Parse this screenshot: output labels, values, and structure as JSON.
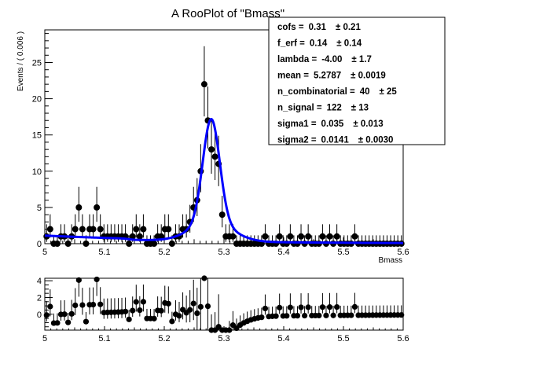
{
  "chart_data": [
    {
      "type": "scatter",
      "title": "A RooPlot of \"Bmass\"",
      "xlabel": "Bmass",
      "ylabel": "Events / ( 0.006 )",
      "xlim": [
        5.0,
        5.6
      ],
      "ylim": [
        0,
        29.5
      ],
      "xticks": [
        "5",
        "5.1",
        "5.2",
        "5.3",
        "5.4",
        "5.5",
        "5.6"
      ],
      "yticks": [
        "0",
        "5",
        "10",
        "15",
        "20",
        "25"
      ],
      "points": [
        {
          "x": 5.003,
          "y": 1
        },
        {
          "x": 5.009,
          "y": 2
        },
        {
          "x": 5.015,
          "y": 0
        },
        {
          "x": 5.021,
          "y": 0
        },
        {
          "x": 5.027,
          "y": 1
        },
        {
          "x": 5.033,
          "y": 1
        },
        {
          "x": 5.039,
          "y": 0
        },
        {
          "x": 5.045,
          "y": 1
        },
        {
          "x": 5.051,
          "y": 2
        },
        {
          "x": 5.057,
          "y": 5
        },
        {
          "x": 5.063,
          "y": 2
        },
        {
          "x": 5.069,
          "y": 0
        },
        {
          "x": 5.075,
          "y": 2
        },
        {
          "x": 5.081,
          "y": 2
        },
        {
          "x": 5.087,
          "y": 5
        },
        {
          "x": 5.093,
          "y": 2
        },
        {
          "x": 5.099,
          "y": 1
        },
        {
          "x": 5.105,
          "y": 1
        },
        {
          "x": 5.111,
          "y": 1
        },
        {
          "x": 5.117,
          "y": 1
        },
        {
          "x": 5.123,
          "y": 1
        },
        {
          "x": 5.129,
          "y": 1
        },
        {
          "x": 5.135,
          "y": 1
        },
        {
          "x": 5.141,
          "y": 0
        },
        {
          "x": 5.147,
          "y": 1
        },
        {
          "x": 5.153,
          "y": 2
        },
        {
          "x": 5.159,
          "y": 1
        },
        {
          "x": 5.165,
          "y": 2
        },
        {
          "x": 5.171,
          "y": 0
        },
        {
          "x": 5.177,
          "y": 0
        },
        {
          "x": 5.183,
          "y": 0
        },
        {
          "x": 5.189,
          "y": 1
        },
        {
          "x": 5.195,
          "y": 1
        },
        {
          "x": 5.201,
          "y": 2
        },
        {
          "x": 5.207,
          "y": 2
        },
        {
          "x": 5.213,
          "y": 0
        },
        {
          "x": 5.219,
          "y": 1
        },
        {
          "x": 5.225,
          "y": 1
        },
        {
          "x": 5.231,
          "y": 2
        },
        {
          "x": 5.237,
          "y": 2
        },
        {
          "x": 5.243,
          "y": 3
        },
        {
          "x": 5.249,
          "y": 5
        },
        {
          "x": 5.255,
          "y": 6
        },
        {
          "x": 5.261,
          "y": 10
        },
        {
          "x": 5.267,
          "y": 22
        },
        {
          "x": 5.273,
          "y": 17
        },
        {
          "x": 5.279,
          "y": 13
        },
        {
          "x": 5.285,
          "y": 12
        },
        {
          "x": 5.291,
          "y": 11
        },
        {
          "x": 5.297,
          "y": 4
        },
        {
          "x": 5.303,
          "y": 1
        },
        {
          "x": 5.309,
          "y": 1
        },
        {
          "x": 5.315,
          "y": 1
        },
        {
          "x": 5.321,
          "y": 0
        },
        {
          "x": 5.327,
          "y": 0
        },
        {
          "x": 5.333,
          "y": 0
        },
        {
          "x": 5.339,
          "y": 0
        },
        {
          "x": 5.345,
          "y": 0
        },
        {
          "x": 5.351,
          "y": 0
        },
        {
          "x": 5.357,
          "y": 0
        },
        {
          "x": 5.363,
          "y": 0
        },
        {
          "x": 5.369,
          "y": 1
        },
        {
          "x": 5.375,
          "y": 0
        },
        {
          "x": 5.381,
          "y": 0
        },
        {
          "x": 5.387,
          "y": 0
        },
        {
          "x": 5.393,
          "y": 1
        },
        {
          "x": 5.399,
          "y": 0
        },
        {
          "x": 5.405,
          "y": 0
        },
        {
          "x": 5.411,
          "y": 1
        },
        {
          "x": 5.417,
          "y": 0
        },
        {
          "x": 5.423,
          "y": 0
        },
        {
          "x": 5.429,
          "y": 1
        },
        {
          "x": 5.435,
          "y": 0
        },
        {
          "x": 5.441,
          "y": 1
        },
        {
          "x": 5.447,
          "y": 0
        },
        {
          "x": 5.453,
          "y": 0
        },
        {
          "x": 5.459,
          "y": 0
        },
        {
          "x": 5.465,
          "y": 1
        },
        {
          "x": 5.471,
          "y": 0
        },
        {
          "x": 5.477,
          "y": 1
        },
        {
          "x": 5.483,
          "y": 0
        },
        {
          "x": 5.489,
          "y": 1
        },
        {
          "x": 5.495,
          "y": 0
        },
        {
          "x": 5.501,
          "y": 0
        },
        {
          "x": 5.507,
          "y": 0
        },
        {
          "x": 5.513,
          "y": 0
        },
        {
          "x": 5.519,
          "y": 1
        },
        {
          "x": 5.525,
          "y": 0
        },
        {
          "x": 5.531,
          "y": 0
        },
        {
          "x": 5.537,
          "y": 0
        },
        {
          "x": 5.543,
          "y": 0
        },
        {
          "x": 5.549,
          "y": 0
        },
        {
          "x": 5.555,
          "y": 0
        },
        {
          "x": 5.561,
          "y": 0
        },
        {
          "x": 5.567,
          "y": 0
        },
        {
          "x": 5.573,
          "y": 0
        },
        {
          "x": 5.579,
          "y": 0
        },
        {
          "x": 5.585,
          "y": 0
        },
        {
          "x": 5.591,
          "y": 0
        },
        {
          "x": 5.597,
          "y": 0
        }
      ],
      "fit_curve": {
        "color": "#0000ff",
        "components": {
          "n_signal": 122,
          "n_combinatorial": 40,
          "bin_width": 0.006,
          "mean": 5.2787,
          "sigma1": 0.035,
          "sigma2": 0.0141,
          "cofs": 0.31,
          "lambda": -4.0,
          "f_erf": 0.14
        }
      },
      "params": [
        {
          "name": "cofs =",
          "value": "0.31",
          "error": "± 0.21"
        },
        {
          "name": "f_erf =",
          "value": "0.14",
          "error": "± 0.14"
        },
        {
          "name": "lambda =",
          "value": "-4.00",
          "error": "± 1.7"
        },
        {
          "name": "mean =",
          "value": "5.2787",
          "error": "± 0.0019"
        },
        {
          "name": "n_combinatorial =",
          "value": "40",
          "error": "± 25"
        },
        {
          "name": "n_signal =",
          "value": "122",
          "error": "± 13"
        },
        {
          "name": "sigma1 =",
          "value": "0.035",
          "error": "± 0.013"
        },
        {
          "name": "sigma2 =",
          "value": "0.0141",
          "error": "± 0.0030"
        }
      ]
    },
    {
      "type": "scatter",
      "xlim": [
        5.0,
        5.6
      ],
      "ylim": [
        -1.9,
        4.3
      ],
      "xticks": [
        "5",
        "5.1",
        "5.2",
        "5.3",
        "5.4",
        "5.5",
        "5.6"
      ],
      "yticks": [
        "0",
        "2",
        "4"
      ]
    }
  ]
}
